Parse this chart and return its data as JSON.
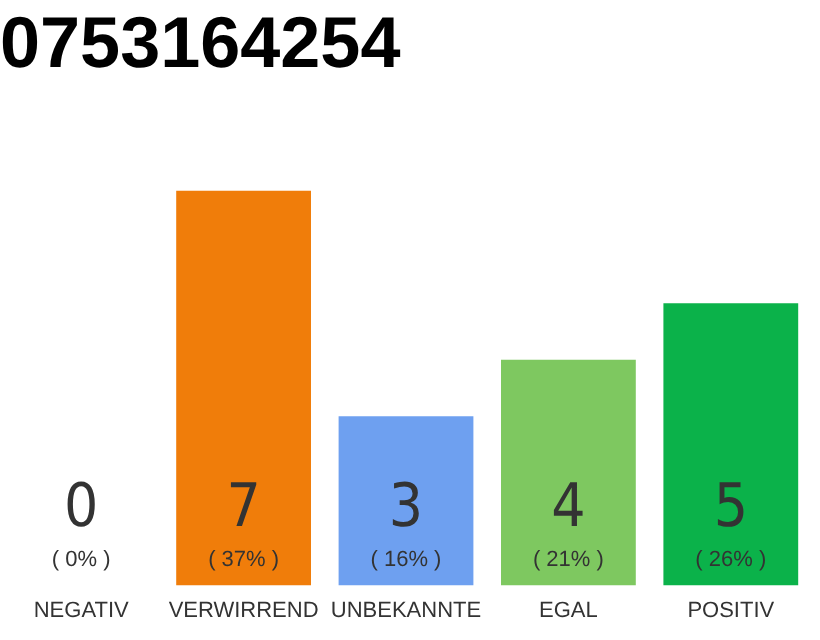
{
  "chart_data": {
    "type": "bar",
    "title": "0753164254",
    "categories": [
      "NEGATIV",
      "VERWIRREND",
      "UNBEKANNTE",
      "EGAL",
      "POSITIV"
    ],
    "values": [
      0,
      7,
      3,
      4,
      5
    ],
    "colors": [
      "#d8d8d8",
      "#f07d0a",
      "#6ea0f0",
      "#7ec860",
      "#0bb24a"
    ],
    "value_labels": [
      "0\n( 0% )",
      "7\n( 37% )",
      "3\n( 16% )",
      "4\n( 21% )",
      "5\n( 26% )"
    ],
    "grid": false,
    "legend": false,
    "tick_labels": "x"
  }
}
